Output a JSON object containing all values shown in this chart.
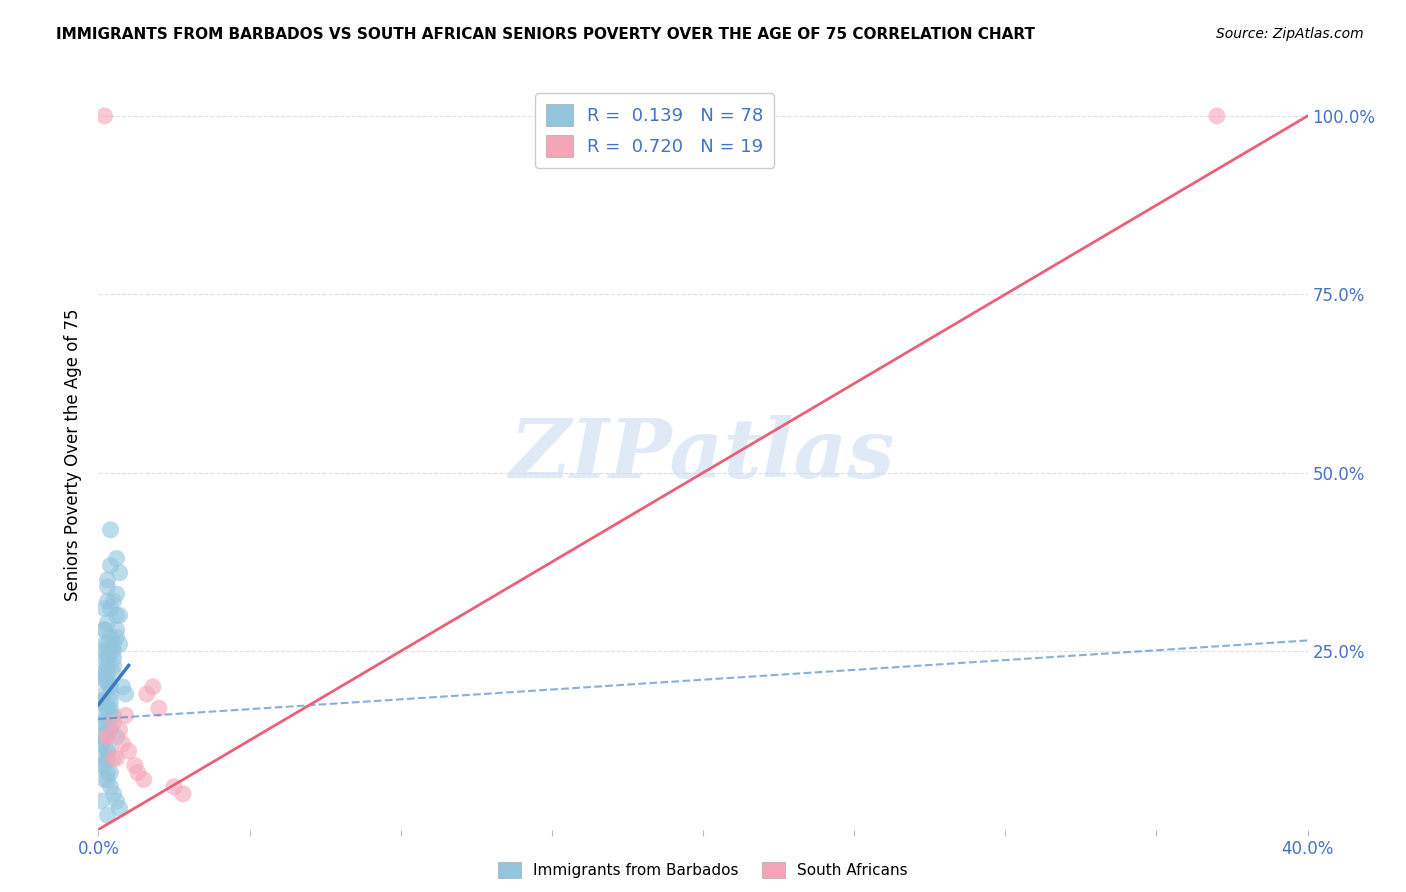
{
  "title": "IMMIGRANTS FROM BARBADOS VS SOUTH AFRICAN SENIORS POVERTY OVER THE AGE OF 75 CORRELATION CHART",
  "source": "Source: ZipAtlas.com",
  "ylabel": "Seniors Poverty Over the Age of 75",
  "xlim": [
    0.0,
    0.4
  ],
  "ylim": [
    0.0,
    1.05
  ],
  "xticks": [
    0.0,
    0.05,
    0.1,
    0.15,
    0.2,
    0.25,
    0.3,
    0.35,
    0.4
  ],
  "yticks": [
    0.0,
    0.25,
    0.5,
    0.75,
    1.0
  ],
  "blue_color": "#92c5de",
  "pink_color": "#f4a6b8",
  "blue_line_color": "#3a7abf",
  "pink_line_color": "#e8607a",
  "watermark_color": "#ccdcf0",
  "watermark": "ZIPatlas",
  "legend_R_blue": "R =  0.139",
  "legend_N_blue": "N = 78",
  "legend_R_pink": "R =  0.720",
  "legend_N_pink": "N = 19",
  "blue_scatter_x": [
    0.004,
    0.006,
    0.003,
    0.002,
    0.001,
    0.005,
    0.004,
    0.007,
    0.008,
    0.009,
    0.002,
    0.003,
    0.004,
    0.005,
    0.006,
    0.001,
    0.007,
    0.003,
    0.002,
    0.003,
    0.001,
    0.004,
    0.003,
    0.002,
    0.005,
    0.006,
    0.004,
    0.003,
    0.007,
    0.002,
    0.001,
    0.003,
    0.004,
    0.004,
    0.005,
    0.002,
    0.003,
    0.001,
    0.004,
    0.004,
    0.002,
    0.003,
    0.005,
    0.004,
    0.001,
    0.006,
    0.002,
    0.003,
    0.004,
    0.003,
    0.001,
    0.002,
    0.003,
    0.003,
    0.004,
    0.005,
    0.006,
    0.007,
    0.002,
    0.002,
    0.003,
    0.001,
    0.005,
    0.002,
    0.002,
    0.003,
    0.004,
    0.001,
    0.003,
    0.006,
    0.002,
    0.003,
    0.002,
    0.004,
    0.005,
    0.006,
    0.001,
    0.003
  ],
  "blue_scatter_y": [
    0.42,
    0.38,
    0.35,
    0.28,
    0.22,
    0.24,
    0.27,
    0.26,
    0.2,
    0.19,
    0.21,
    0.23,
    0.25,
    0.26,
    0.28,
    0.18,
    0.3,
    0.29,
    0.31,
    0.17,
    0.16,
    0.18,
    0.17,
    0.15,
    0.32,
    0.33,
    0.31,
    0.34,
    0.36,
    0.13,
    0.12,
    0.11,
    0.14,
    0.37,
    0.22,
    0.21,
    0.1,
    0.09,
    0.08,
    0.2,
    0.19,
    0.21,
    0.23,
    0.17,
    0.15,
    0.27,
    0.25,
    0.24,
    0.16,
    0.14,
    0.12,
    0.1,
    0.08,
    0.07,
    0.06,
    0.05,
    0.04,
    0.03,
    0.07,
    0.09,
    0.11,
    0.13,
    0.25,
    0.26,
    0.24,
    0.22,
    0.2,
    0.18,
    0.32,
    0.3,
    0.28,
    0.26,
    0.22,
    0.19,
    0.16,
    0.13,
    0.04,
    0.02
  ],
  "pink_scatter_x": [
    0.018,
    0.003,
    0.005,
    0.007,
    0.01,
    0.013,
    0.015,
    0.02,
    0.025,
    0.028,
    0.005,
    0.009,
    0.016,
    0.003,
    0.006,
    0.002,
    0.012,
    0.008,
    0.37
  ],
  "pink_scatter_y": [
    0.2,
    0.13,
    0.1,
    0.14,
    0.11,
    0.08,
    0.07,
    0.17,
    0.06,
    0.05,
    0.15,
    0.16,
    0.19,
    0.13,
    0.1,
    1.0,
    0.09,
    0.12,
    1.0
  ],
  "blue_trend_x": [
    0.0,
    0.4
  ],
  "blue_trend_y": [
    0.155,
    0.265
  ],
  "blue_short_trend_x": [
    0.0,
    0.01
  ],
  "blue_short_trend_y": [
    0.175,
    0.23
  ],
  "pink_trend_x": [
    0.0,
    0.4
  ],
  "pink_trend_y": [
    0.0,
    1.0
  ],
  "bg_color": "#ffffff",
  "grid_color": "#e0e0e0",
  "right_tick_color": "#4472c4",
  "axis_label_color": "#4472c4"
}
